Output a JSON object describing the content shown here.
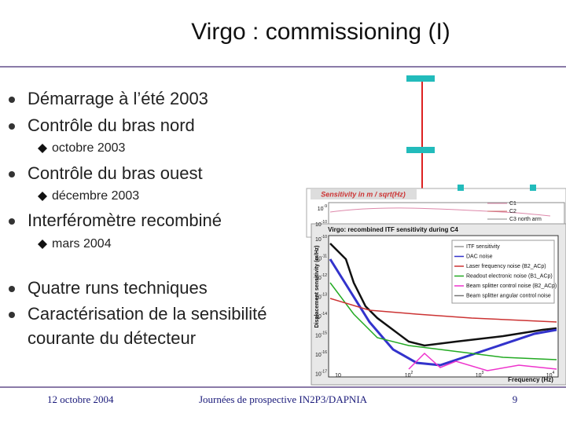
{
  "header": {
    "title": "Virgo : commissioning (I)"
  },
  "bullets": [
    {
      "text": "Démarrage à l’été 2003"
    },
    {
      "text": "Contrôle du bras nord",
      "sub": [
        "octobre 2003"
      ]
    },
    {
      "text": "Contrôle du bras ouest",
      "sub": [
        "décembre 2003"
      ]
    },
    {
      "text": "Interféromètre recombiné",
      "sub": [
        "mars 2004"
      ]
    },
    {
      "text": "Quatre runs techniques"
    },
    {
      "text": "Caractérisation de la sensibilité",
      "cont": "courante du détecteur"
    }
  ],
  "plot_top": {
    "title": "Sensitivity in m / sqrt(Hz)",
    "legend": [
      "C1",
      "C2",
      "C3 north arm"
    ],
    "yticks": [
      {
        "base": "10",
        "exp": "-9"
      },
      {
        "base": "10",
        "exp": "-10"
      }
    ]
  },
  "plot_main": {
    "title": "Virgo: recombined ITF sensitivity during C4",
    "ylabel": "Displacement sensitivity (m/Hz)",
    "xlabel": "Frequency (Hz)",
    "legend": [
      "ITF sensitivity",
      "DAC noise",
      "Laser frequency noise (B2_ACp)",
      "Readout electronic noise (B1_ACp)",
      "Beam splitter control noise (B2_ACp)",
      "Beam splitter angular control noise"
    ],
    "yticks": [
      {
        "base": "10",
        "exp": "-10"
      },
      {
        "base": "10",
        "exp": "-11"
      },
      {
        "base": "10",
        "exp": "-12"
      },
      {
        "base": "10",
        "exp": "-13"
      },
      {
        "base": "10",
        "exp": "-14"
      },
      {
        "base": "10",
        "exp": "-15"
      },
      {
        "base": "10",
        "exp": "-16"
      },
      {
        "base": "10",
        "exp": "-17"
      }
    ],
    "xticks": [
      {
        "base": "10",
        "exp": ""
      },
      {
        "base": "10",
        "exp": "2"
      },
      {
        "base": "10",
        "exp": "3"
      },
      {
        "base": "10",
        "exp": "4"
      }
    ]
  },
  "footer": {
    "date": "12 octobre 2004",
    "event": "Journées de prospective IN2P3/DAPNIA",
    "page": "9"
  }
}
